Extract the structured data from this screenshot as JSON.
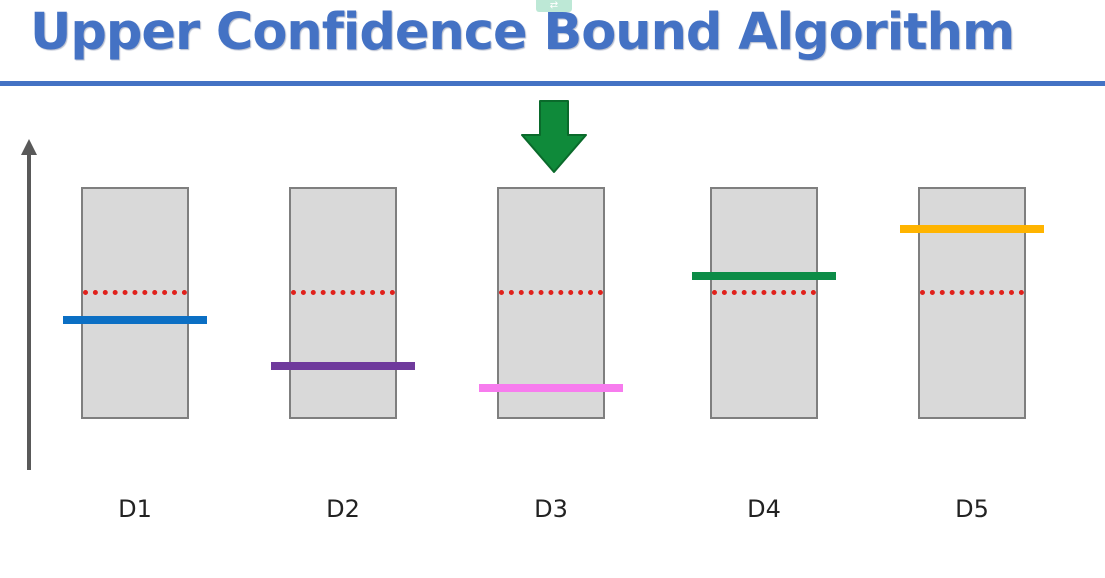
{
  "slide": {
    "title": "Upper Confidence Bound Algorithm"
  },
  "colors": {
    "title": "#4472c4",
    "rule": "#4472c4",
    "machine_fill": "#d9d9d9",
    "machine_border": "#7f7f7f",
    "expected_return_line": "#e0201b",
    "selector_arrow": "#0f8a3a",
    "axis": "#595959"
  },
  "axis": {
    "icon": "arrow-up-icon"
  },
  "selector": {
    "icon": "arrow-down-icon",
    "points_at": "D3"
  },
  "machines": [
    {
      "label": "D1",
      "expected_return_level": 0.5,
      "upper_bound_level": 0.425,
      "bound_color": "#0b6fc4"
    },
    {
      "label": "D2",
      "expected_return_level": 0.5,
      "upper_bound_level": 0.23,
      "bound_color": "#6f3a9c"
    },
    {
      "label": "D3",
      "expected_return_level": 0.5,
      "upper_bound_level": 0.135,
      "bound_color": "#f77cee"
    },
    {
      "label": "D4",
      "expected_return_level": 0.5,
      "upper_bound_level": 0.615,
      "bound_color": "#0c8c47"
    },
    {
      "label": "D5",
      "expected_return_level": 0.5,
      "upper_bound_level": 0.82,
      "bound_color": "#ffb400"
    }
  ]
}
